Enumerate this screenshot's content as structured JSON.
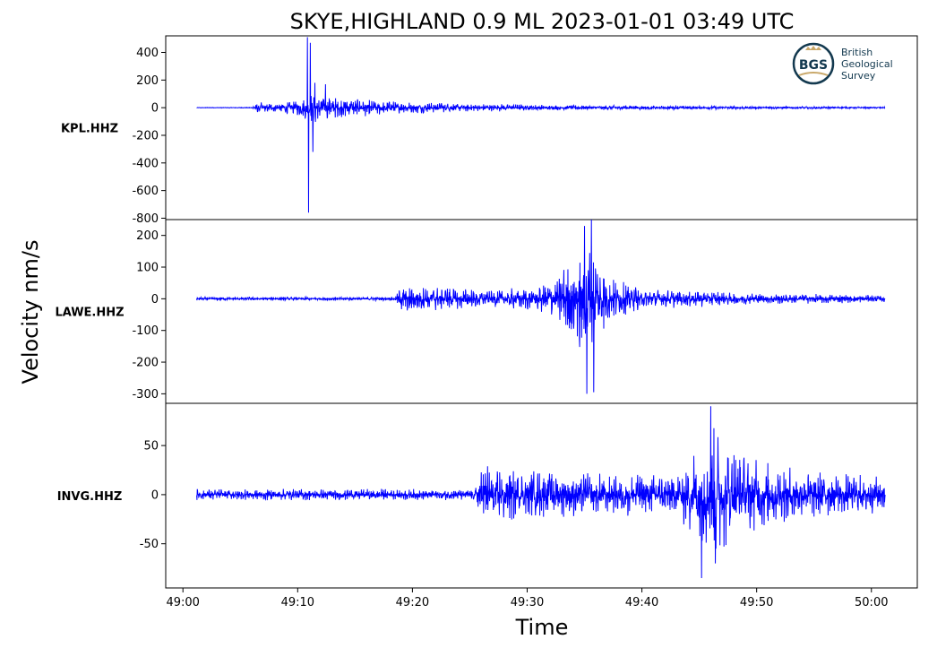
{
  "chart_data": {
    "type": "line",
    "title": "SKYE,HIGHLAND 0.9 ML   2023-01-01 03:49 UTC",
    "xlabel": "Time",
    "ylabel": "Velocity nm/s",
    "line_color": "#0000ff",
    "x_ticks": [
      "49:00",
      "49:10",
      "49:20",
      "49:30",
      "49:40",
      "49:50",
      "50:00"
    ],
    "x_tick_seconds": [
      0,
      10,
      20,
      30,
      40,
      50,
      60
    ],
    "xlim_seconds": [
      -1.5,
      64
    ],
    "trace_start_seconds": 1.2,
    "trace_end_seconds": 61.2,
    "panels": [
      {
        "station": "KPL.HHZ",
        "ylim": [
          -810,
          520
        ],
        "yticks": [
          400,
          200,
          0,
          -200,
          -400,
          -600,
          -800
        ],
        "envelope": [
          {
            "t": 1.2,
            "amp": 2
          },
          {
            "t": 6.0,
            "amp": 3
          },
          {
            "t": 6.3,
            "amp": 40
          },
          {
            "t": 8.0,
            "amp": 35
          },
          {
            "t": 10.0,
            "amp": 60
          },
          {
            "t": 11.5,
            "amp": 130
          },
          {
            "t": 13.0,
            "amp": 80
          },
          {
            "t": 18.0,
            "amp": 50
          },
          {
            "t": 25.0,
            "amp": 30
          },
          {
            "t": 35.0,
            "amp": 18
          },
          {
            "t": 50.0,
            "amp": 12
          },
          {
            "t": 61.2,
            "amp": 6
          }
        ],
        "spikes": [
          {
            "t": 10.85,
            "v": 510
          },
          {
            "t": 10.95,
            "v": -760
          },
          {
            "t": 11.1,
            "v": 470
          },
          {
            "t": 11.3,
            "v": -320
          },
          {
            "t": 11.5,
            "v": 180
          },
          {
            "t": 12.4,
            "v": 170
          }
        ]
      },
      {
        "station": "LAWE.HHZ",
        "ylim": [
          -330,
          250
        ],
        "yticks": [
          200,
          100,
          0,
          -100,
          -200,
          -300
        ],
        "envelope": [
          {
            "t": 1.2,
            "amp": 6
          },
          {
            "t": 18.5,
            "amp": 6
          },
          {
            "t": 19.0,
            "amp": 45
          },
          {
            "t": 22.0,
            "amp": 40
          },
          {
            "t": 27.0,
            "amp": 30
          },
          {
            "t": 31.0,
            "amp": 40
          },
          {
            "t": 33.5,
            "amp": 120
          },
          {
            "t": 35.3,
            "amp": 220
          },
          {
            "t": 37.0,
            "amp": 80
          },
          {
            "t": 40.0,
            "amp": 35
          },
          {
            "t": 50.0,
            "amp": 18
          },
          {
            "t": 61.2,
            "amp": 12
          }
        ],
        "spikes": [
          {
            "t": 35.0,
            "v": 230
          },
          {
            "t": 35.2,
            "v": -300
          },
          {
            "t": 35.6,
            "v": 250
          },
          {
            "t": 35.8,
            "v": -295
          }
        ]
      },
      {
        "station": "INVG.HHZ",
        "ylim": [
          -95,
          93
        ],
        "yticks": [
          50,
          0,
          -50
        ],
        "envelope": [
          {
            "t": 1.2,
            "amp": 6
          },
          {
            "t": 25.5,
            "amp": 6
          },
          {
            "t": 25.8,
            "amp": 35
          },
          {
            "t": 28.0,
            "amp": 28
          },
          {
            "t": 35.0,
            "amp": 22
          },
          {
            "t": 43.0,
            "amp": 22
          },
          {
            "t": 45.0,
            "amp": 55
          },
          {
            "t": 46.2,
            "amp": 70
          },
          {
            "t": 49.0,
            "amp": 40
          },
          {
            "t": 55.0,
            "amp": 25
          },
          {
            "t": 61.2,
            "amp": 20
          }
        ],
        "spikes": [
          {
            "t": 45.2,
            "v": -85
          },
          {
            "t": 46.0,
            "v": 90
          },
          {
            "t": 46.4,
            "v": -70
          }
        ]
      }
    ]
  },
  "logo": {
    "badge_text": "BGS",
    "lines": [
      "British",
      "Geological",
      "Survey"
    ]
  }
}
